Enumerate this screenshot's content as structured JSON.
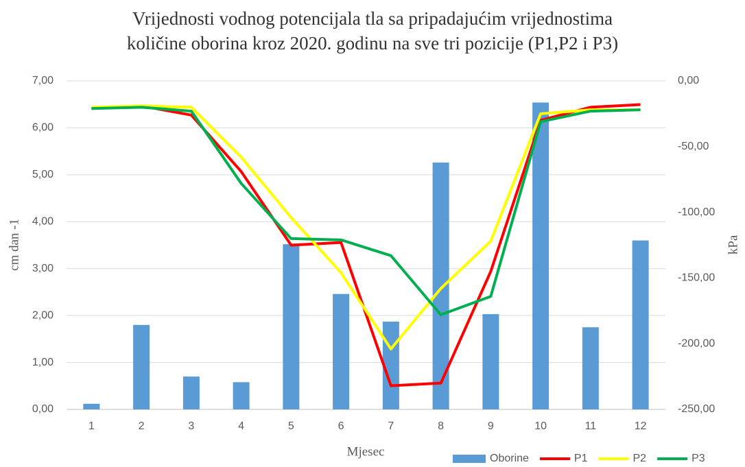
{
  "chart_data": {
    "type": "bar_line",
    "title": [
      "Vrijednosti vodnog potencijala tla sa pripadajućim vrijednostima",
      "količine oborina kroz 2020. godinu na sve tri pozicije (P1,P2 i P3)"
    ],
    "x_label": "Mjesec",
    "y_label": "cm dan -1",
    "y2_label": "kPa",
    "categories": [
      "1",
      "2",
      "3",
      "4",
      "5",
      "6",
      "7",
      "8",
      "9",
      "10",
      "11",
      "12"
    ],
    "series": [
      {
        "name": "Oborine",
        "type": "bar",
        "color": "#5b9bd5",
        "values": [
          0.12,
          1.8,
          0.7,
          0.58,
          3.52,
          2.46,
          1.87,
          5.26,
          2.03,
          6.54,
          1.75,
          3.6
        ]
      },
      {
        "name": "P1",
        "type": "line",
        "axis": "y2",
        "color": "#ff0000",
        "values": [
          -21,
          -19,
          -26,
          -69,
          -125,
          -123,
          -232,
          -230,
          -145,
          -30,
          -20,
          -18
        ]
      },
      {
        "name": "P2",
        "type": "line",
        "axis": "y2",
        "color": "#ffff00",
        "values": [
          -20,
          -19,
          -20,
          -58,
          -104,
          -146,
          -204,
          -158,
          -122,
          -25,
          -22,
          -22
        ]
      },
      {
        "name": "P3",
        "type": "line",
        "axis": "y2",
        "color": "#00b050",
        "values": [
          -21,
          -20,
          -23,
          -78,
          -120,
          -121,
          -133,
          -178,
          -164,
          -31,
          -23,
          -22
        ]
      }
    ],
    "ylim": [
      0,
      7
    ],
    "yticks": [
      {
        "value": 0,
        "label": "0,00"
      },
      {
        "value": 1,
        "label": "1,00"
      },
      {
        "value": 2,
        "label": "2,00"
      },
      {
        "value": 3,
        "label": "3,00"
      },
      {
        "value": 4,
        "label": "4,00"
      },
      {
        "value": 5,
        "label": "5,00"
      },
      {
        "value": 6,
        "label": "6,00"
      },
      {
        "value": 7,
        "label": "7,00"
      }
    ],
    "y2lim": [
      -250,
      0
    ],
    "y2ticks": [
      {
        "value": -250,
        "label": "-250,00"
      },
      {
        "value": -200,
        "label": "-200,00"
      },
      {
        "value": -150,
        "label": "-150,00"
      },
      {
        "value": -100,
        "label": "-100,00"
      },
      {
        "value": -50,
        "label": "-50,00"
      },
      {
        "value": 0,
        "label": "0,00"
      }
    ],
    "grid": true,
    "legend": "bottom-right"
  }
}
